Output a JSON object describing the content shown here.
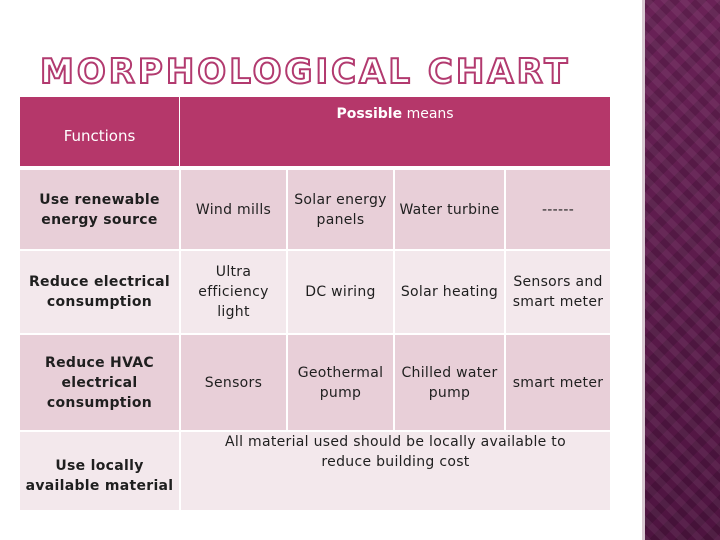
{
  "slide": {
    "title": "MORPHOLOGICAL CHART"
  },
  "table": {
    "header": {
      "functions": "Functions",
      "possible_bold": "Possible",
      "possible_rest": "means"
    },
    "rows": [
      {
        "function": "Use renewable energy source",
        "means": [
          "Wind mills",
          "Solar energy panels",
          "Water turbine",
          "------"
        ]
      },
      {
        "function": "Reduce electrical consumption",
        "means": [
          "Ultra efficiency light",
          "DC wiring",
          "Solar heating",
          "Sensors and smart meter"
        ]
      },
      {
        "function": "Reduce HVAC electrical consumption",
        "means": [
          "Sensors",
          "Geothermal pump",
          "Chilled water pump",
          "smart meter"
        ]
      },
      {
        "function": "Use locally available material",
        "merged_means": "All material used should be locally available to reduce building cost"
      }
    ]
  },
  "colors": {
    "header_bg": "#b5376a",
    "row_dark": "#e8cfd8",
    "row_light": "#f3e8ec",
    "title_stroke": "#b23a6f",
    "side_band": "#5b1a4a"
  }
}
